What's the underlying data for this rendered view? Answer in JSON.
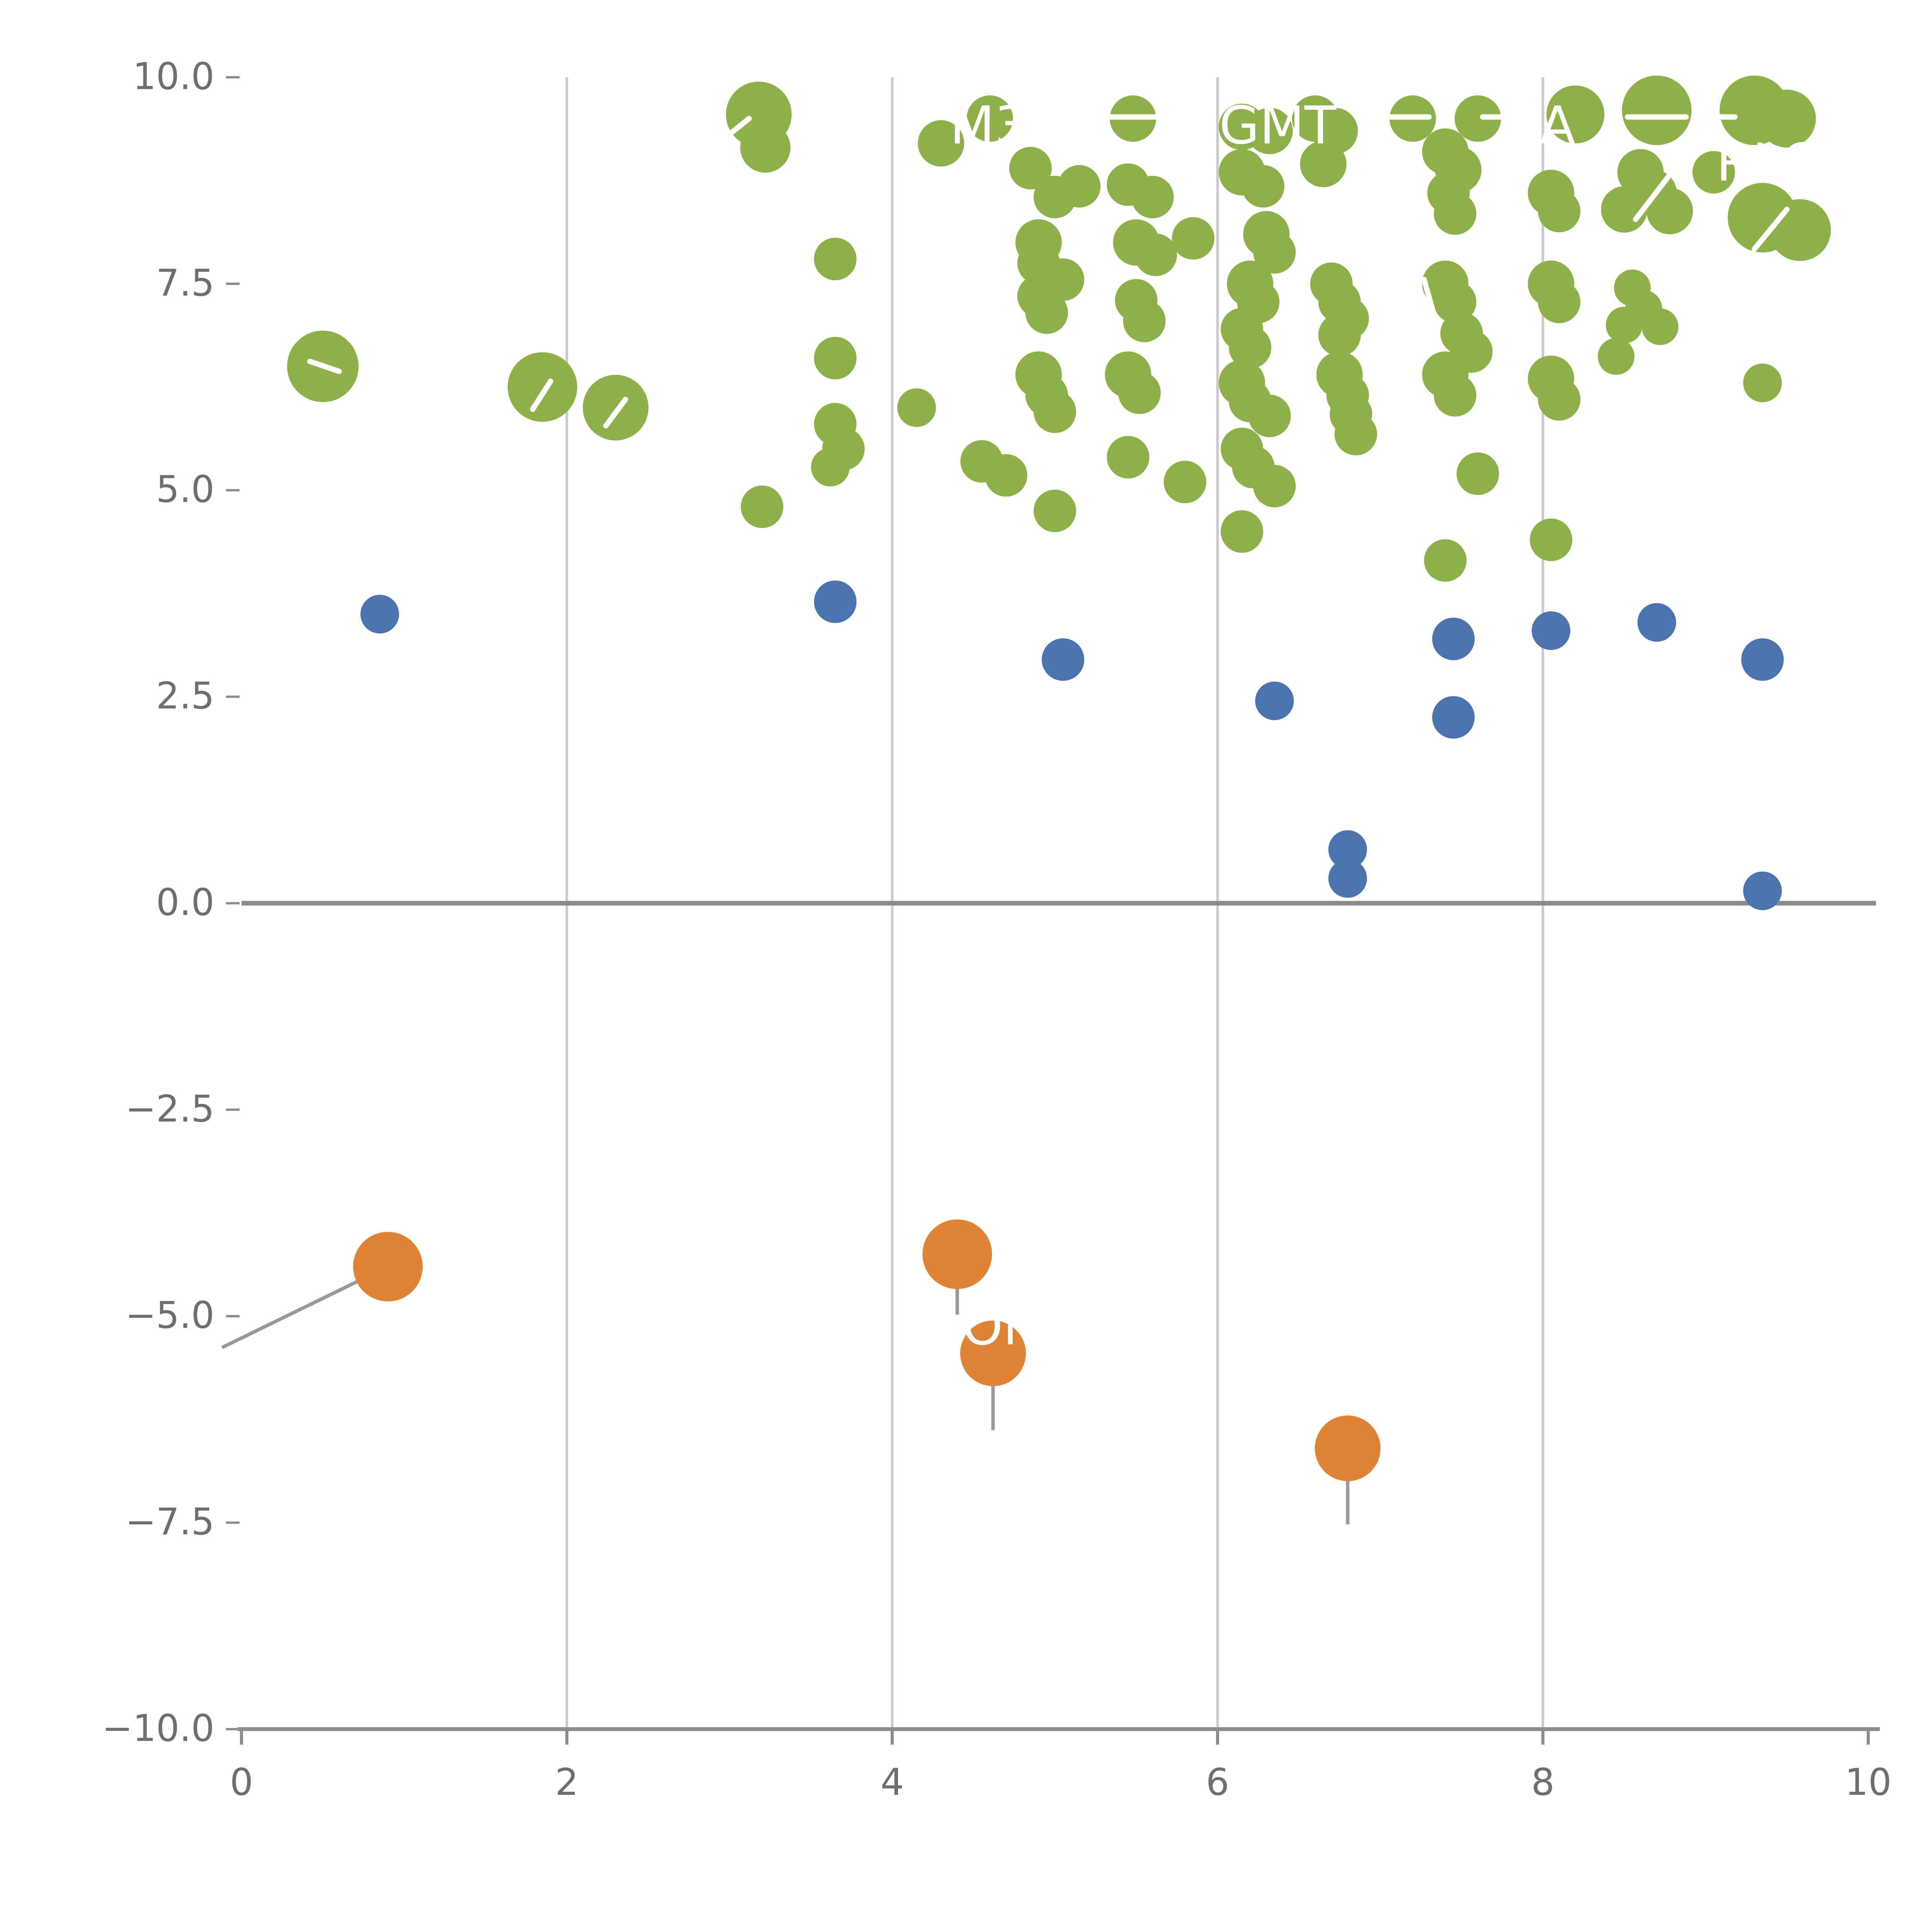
{
  "chart_data": {
    "type": "scatter",
    "title": "",
    "xlabel": "",
    "ylabel": "",
    "xlim": [
      0,
      10
    ],
    "ylim": [
      -10,
      10
    ],
    "grid_x": [
      2,
      4,
      6,
      8
    ],
    "zero_line_y": 0,
    "xticks": {
      "values": [
        0,
        2,
        4,
        6,
        8,
        10
      ],
      "labels": [
        "0",
        "2",
        "4",
        "6",
        "8",
        "10"
      ]
    },
    "yticks": {
      "values": [
        -10,
        -7.5,
        -5,
        -2.5,
        0,
        2.5,
        5,
        7.5,
        10
      ],
      "labels": [
        "−10.0",
        "−7.5",
        "−5.0",
        "−2.5",
        "0.0",
        "2.5",
        "5.0",
        "7.5",
        "10.0"
      ]
    },
    "colors": {
      "grid": "#c9c9c9",
      "axis": "#8c8c8c",
      "zero_line": "#8a8a8a",
      "tick_label": "#6e6e6e",
      "green": "#8db04a",
      "blue": "#4c72b0",
      "orange": "#dd8438",
      "leader_white": "#ffffff",
      "leader_gray": "#999999",
      "label_text": "#ffffff"
    },
    "series": [
      {
        "name": "green",
        "color": "#8db04a",
        "points": [
          [
            0.5,
            6.5,
            18.5
          ],
          [
            1.85,
            6.25,
            18
          ],
          [
            2.3,
            6.0,
            17
          ],
          [
            3.18,
            9.55,
            17
          ],
          [
            3.22,
            9.15,
            13
          ],
          [
            3.2,
            4.8,
            11
          ],
          [
            3.65,
            7.8,
            11
          ],
          [
            3.65,
            6.6,
            11
          ],
          [
            3.65,
            5.8,
            11
          ],
          [
            3.7,
            5.5,
            11
          ],
          [
            3.62,
            5.28,
            10
          ],
          [
            4.15,
            6.0,
            10
          ],
          [
            4.3,
            9.2,
            12
          ],
          [
            4.6,
            9.5,
            12
          ],
          [
            4.55,
            5.35,
            11
          ],
          [
            4.7,
            5.18,
            11
          ],
          [
            4.85,
            8.9,
            11
          ],
          [
            5.0,
            8.55,
            11
          ],
          [
            5.15,
            8.68,
            11
          ],
          [
            4.9,
            8.0,
            12
          ],
          [
            4.9,
            7.75,
            11
          ],
          [
            5.05,
            7.55,
            11
          ],
          [
            4.9,
            7.35,
            11
          ],
          [
            4.95,
            7.15,
            11
          ],
          [
            4.9,
            6.4,
            12
          ],
          [
            4.95,
            6.15,
            11
          ],
          [
            5.0,
            5.95,
            11
          ],
          [
            5.0,
            4.75,
            11
          ],
          [
            5.48,
            9.5,
            12
          ],
          [
            5.45,
            8.7,
            11
          ],
          [
            5.6,
            8.55,
            11
          ],
          [
            5.5,
            8.0,
            12
          ],
          [
            5.62,
            7.85,
            11
          ],
          [
            5.85,
            8.05,
            11
          ],
          [
            5.5,
            7.3,
            11
          ],
          [
            5.55,
            7.05,
            11
          ],
          [
            5.45,
            6.4,
            12
          ],
          [
            5.52,
            6.18,
            11
          ],
          [
            5.45,
            5.4,
            11
          ],
          [
            5.8,
            5.1,
            11
          ],
          [
            6.15,
            9.4,
            12
          ],
          [
            6.32,
            9.35,
            12
          ],
          [
            6.15,
            8.85,
            12
          ],
          [
            6.28,
            8.68,
            11
          ],
          [
            6.3,
            8.1,
            12
          ],
          [
            6.35,
            7.88,
            11
          ],
          [
            6.2,
            7.5,
            12
          ],
          [
            6.25,
            7.28,
            11
          ],
          [
            6.15,
            6.95,
            11
          ],
          [
            6.2,
            6.73,
            11
          ],
          [
            6.15,
            6.3,
            12
          ],
          [
            6.2,
            6.08,
            11
          ],
          [
            6.32,
            5.9,
            11
          ],
          [
            6.15,
            5.5,
            11
          ],
          [
            6.22,
            5.28,
            11
          ],
          [
            6.35,
            5.05,
            11
          ],
          [
            6.15,
            4.5,
            11
          ],
          [
            6.6,
            9.5,
            12
          ],
          [
            6.72,
            9.35,
            12
          ],
          [
            6.65,
            8.95,
            12
          ],
          [
            6.7,
            7.5,
            11
          ],
          [
            6.75,
            7.28,
            11
          ],
          [
            6.8,
            7.08,
            11
          ],
          [
            6.75,
            6.88,
            11
          ],
          [
            6.75,
            6.4,
            12
          ],
          [
            6.8,
            6.15,
            11
          ],
          [
            6.82,
            5.92,
            11
          ],
          [
            6.85,
            5.68,
            11
          ],
          [
            7.2,
            9.5,
            12
          ],
          [
            7.6,
            9.5,
            12
          ],
          [
            7.4,
            9.1,
            12
          ],
          [
            7.48,
            8.88,
            12
          ],
          [
            7.42,
            8.6,
            11
          ],
          [
            7.46,
            8.35,
            11
          ],
          [
            7.4,
            7.5,
            12
          ],
          [
            7.46,
            7.28,
            11
          ],
          [
            7.5,
            6.9,
            11
          ],
          [
            7.56,
            6.68,
            11
          ],
          [
            7.4,
            6.4,
            12
          ],
          [
            7.46,
            6.15,
            11
          ],
          [
            7.6,
            5.2,
            11
          ],
          [
            7.4,
            4.15,
            11
          ],
          [
            8.2,
            9.55,
            15
          ],
          [
            8.05,
            8.6,
            12
          ],
          [
            8.1,
            8.38,
            11
          ],
          [
            8.05,
            7.5,
            12
          ],
          [
            8.1,
            7.28,
            11
          ],
          [
            8.05,
            6.35,
            12
          ],
          [
            8.1,
            6.1,
            11
          ],
          [
            8.05,
            4.4,
            11
          ],
          [
            8.7,
            9.6,
            18
          ],
          [
            8.6,
            8.85,
            12
          ],
          [
            8.68,
            8.6,
            12
          ],
          [
            8.5,
            8.4,
            12
          ],
          [
            8.78,
            8.38,
            12
          ],
          [
            8.55,
            7.45,
            9.5
          ],
          [
            8.62,
            7.2,
            9.5
          ],
          [
            8.5,
            7.0,
            9.5
          ],
          [
            8.72,
            6.98,
            9.5
          ],
          [
            8.45,
            6.62,
            9.5
          ],
          [
            9.05,
            8.85,
            11
          ],
          [
            9.3,
            9.6,
            18
          ],
          [
            9.5,
            9.5,
            15
          ],
          [
            9.35,
            8.3,
            18
          ],
          [
            9.58,
            8.15,
            16
          ],
          [
            9.35,
            6.3,
            10
          ]
        ]
      },
      {
        "name": "blue",
        "color": "#4c72b0",
        "points": [
          [
            0.85,
            3.5,
            10
          ],
          [
            3.65,
            3.65,
            11
          ],
          [
            5.05,
            2.95,
            11
          ],
          [
            6.35,
            2.45,
            10
          ],
          [
            7.45,
            3.2,
            11
          ],
          [
            7.45,
            2.25,
            11
          ],
          [
            8.05,
            3.3,
            10
          ],
          [
            8.7,
            3.4,
            10
          ],
          [
            9.35,
            2.95,
            11
          ],
          [
            6.8,
            0.65,
            10
          ],
          [
            6.8,
            0.3,
            10
          ],
          [
            9.35,
            0.15,
            10
          ]
        ]
      },
      {
        "name": "orange",
        "color": "#dd8438",
        "points": [
          [
            0.9,
            -4.4,
            18
          ],
          [
            4.4,
            -4.25,
            18
          ],
          [
            4.62,
            -5.45,
            17
          ],
          [
            6.8,
            -6.6,
            17
          ]
        ]
      }
    ],
    "leader_lines": {
      "white": [
        [
          [
            2.93,
            9.2
          ],
          [
            3.12,
            9.5
          ]
        ],
        [
          [
            5.25,
            9.52
          ],
          [
            5.63,
            9.52
          ]
        ],
        [
          [
            6.95,
            9.52
          ],
          [
            7.3,
            9.52
          ]
        ],
        [
          [
            7.63,
            9.52
          ],
          [
            7.87,
            9.52
          ]
        ],
        [
          [
            8.52,
            9.52
          ],
          [
            8.88,
            9.52
          ]
        ],
        [
          [
            9.0,
            9.52
          ],
          [
            9.18,
            9.52
          ]
        ],
        [
          [
            0.42,
            6.56
          ],
          [
            0.6,
            6.44
          ]
        ],
        [
          [
            1.79,
            5.98
          ],
          [
            1.9,
            6.32
          ]
        ],
        [
          [
            2.24,
            5.78
          ],
          [
            2.36,
            6.1
          ]
        ],
        [
          [
            8.57,
            8.28
          ],
          [
            8.78,
            8.82
          ]
        ],
        [
          [
            9.3,
            7.92
          ],
          [
            9.5,
            8.4
          ]
        ],
        [
          [
            7.27,
            7.55
          ],
          [
            7.32,
            7.2
          ]
        ],
        [
          [
            9.28,
            8.78
          ],
          [
            9.45,
            9.1
          ]
        ]
      ],
      "gray": [
        [
          [
            -0.12,
            -5.38
          ],
          [
            0.9,
            -4.4
          ]
        ],
        [
          [
            4.4,
            -4.25
          ],
          [
            4.4,
            -4.98
          ]
        ],
        [
          [
            4.62,
            -5.45
          ],
          [
            4.62,
            -6.38
          ]
        ],
        [
          [
            6.8,
            -6.6
          ],
          [
            6.8,
            -7.52
          ]
        ]
      ]
    },
    "annotations": [
      {
        "text": "M3O",
        "x": 4.72,
        "y": 9.42,
        "color": "#ffffff",
        "size": 27
      },
      {
        "text": "GMT",
        "x": 6.37,
        "y": 9.42,
        "color": "#ffffff",
        "size": 27
      },
      {
        "text": "A",
        "x": 8.09,
        "y": 9.42,
        "color": "#ffffff",
        "size": 27
      },
      {
        "text": "RLG",
        "x": 9.39,
        "y": 8.97,
        "color": "#ffffff",
        "size": 27
      },
      {
        "text": "Oi",
        "x": 4.6,
        "y": -5.12,
        "color": "#ffffff",
        "size": 27
      }
    ]
  }
}
